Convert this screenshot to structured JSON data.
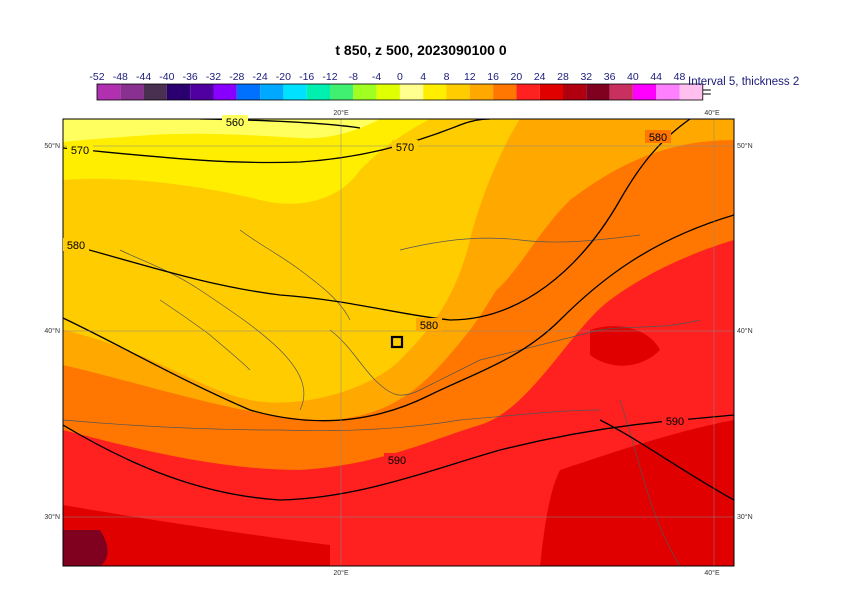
{
  "title": "t 850, z 500, 2023090100 0",
  "colorbar": {
    "ticks": [
      "-52",
      "-48",
      "-44",
      "-40",
      "-36",
      "-32",
      "-28",
      "-24",
      "-20",
      "-16",
      "-12",
      "-8",
      "-4",
      "0",
      "4",
      "8",
      "12",
      "16",
      "20",
      "24",
      "28",
      "32",
      "36",
      "40",
      "44",
      "48"
    ],
    "colors": [
      "#e040e0",
      "#b030b0",
      "#8a3090",
      "#4a3050",
      "#2a0070",
      "#5000a0",
      "#8800ff",
      "#0070ff",
      "#00a8ff",
      "#00e0ff",
      "#00f0b0",
      "#40f070",
      "#a0ff20",
      "#e0ff00",
      "#ffff90",
      "#ffee00",
      "#ffcc00",
      "#ffa800",
      "#ff7700",
      "#ff2020",
      "#e00000",
      "#b00010",
      "#800020",
      "#c83060",
      "#ff00ff",
      "#ff80ff",
      "#ffc0f0"
    ],
    "interval_note": "Interval 5, thickness 2"
  },
  "map": {
    "lon_labels": [
      "20°E",
      "40°E"
    ],
    "lat_labels": [
      "50°N",
      "40°N",
      "30°N"
    ],
    "contour_labels": [
      "560",
      "570",
      "570",
      "580",
      "580",
      "580",
      "590",
      "590"
    ],
    "marker": "station-box"
  }
}
